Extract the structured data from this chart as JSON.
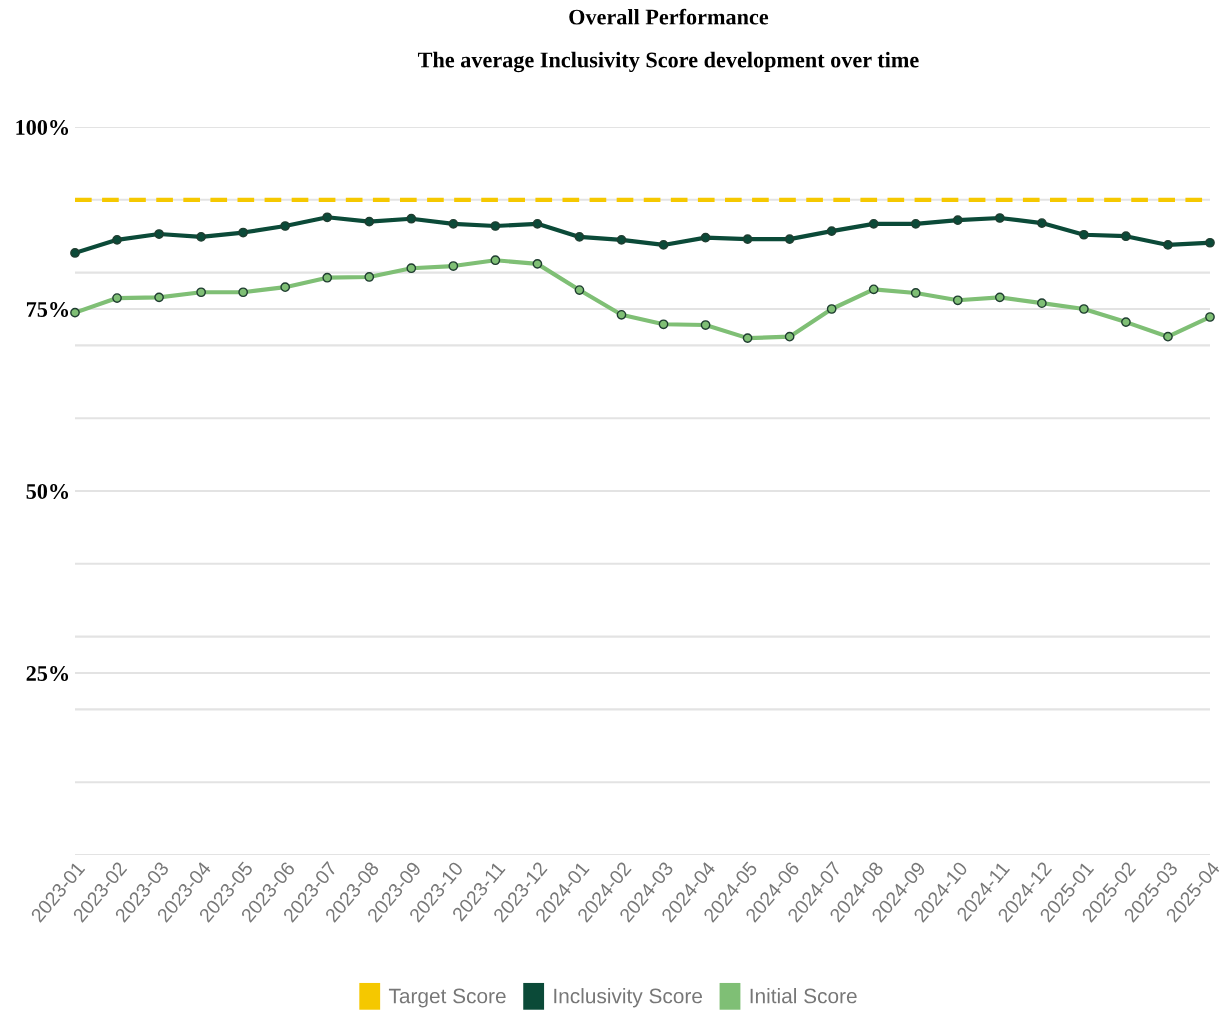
{
  "chart_data": {
    "type": "line",
    "title": "Overall Performance",
    "subtitle": "The average Inclusivity Score development over time",
    "categories": [
      "2023-01",
      "2023-02",
      "2023-03",
      "2023-04",
      "2023-05",
      "2023-06",
      "2023-07",
      "2023-08",
      "2023-09",
      "2023-10",
      "2023-11",
      "2023-12",
      "2024-01",
      "2024-02",
      "2024-03",
      "2024-04",
      "2024-05",
      "2024-06",
      "2024-07",
      "2024-08",
      "2024-09",
      "2024-10",
      "2024-11",
      "2024-12",
      "2025-01",
      "2025-02",
      "2025-03",
      "2025-04"
    ],
    "series": [
      {
        "name": "Target Score",
        "color": "#f5c800",
        "line_style": "dashed",
        "marker": "none",
        "values": [
          90,
          90,
          90,
          90,
          90,
          90,
          90,
          90,
          90,
          90,
          90,
          90,
          90,
          90,
          90,
          90,
          90,
          90,
          90,
          90,
          90,
          90,
          90,
          90,
          90,
          90,
          90,
          90
        ]
      },
      {
        "name": "Inclusivity Score",
        "color": "#0b4a38",
        "line_style": "solid",
        "marker": "circle",
        "values": [
          82.7,
          84.5,
          85.3,
          84.9,
          85.5,
          86.4,
          87.6,
          87.0,
          87.4,
          86.7,
          86.4,
          86.7,
          84.9,
          84.5,
          83.8,
          84.8,
          84.6,
          84.6,
          85.7,
          86.7,
          86.7,
          87.2,
          87.5,
          86.8,
          85.2,
          85.0,
          83.8,
          84.1
        ]
      },
      {
        "name": "Initial Score",
        "color": "#7fbf75",
        "line_style": "solid",
        "marker": "circle",
        "values": [
          74.5,
          76.5,
          76.6,
          77.3,
          77.3,
          78.0,
          79.3,
          79.4,
          80.6,
          80.9,
          81.7,
          81.2,
          77.6,
          74.2,
          72.9,
          72.8,
          71.0,
          71.2,
          75.0,
          77.7,
          77.2,
          76.2,
          76.6,
          75.8,
          75.0,
          73.2,
          71.2,
          73.9
        ]
      }
    ],
    "ylim": [
      0,
      100
    ],
    "yticks": [
      {
        "value": 0,
        "label": null
      },
      {
        "value": 10,
        "label": null
      },
      {
        "value": 20,
        "label": null
      },
      {
        "value": 25,
        "label": "25%"
      },
      {
        "value": 30,
        "label": null
      },
      {
        "value": 40,
        "label": null
      },
      {
        "value": 50,
        "label": "50%"
      },
      {
        "value": 60,
        "label": null
      },
      {
        "value": 70,
        "label": null
      },
      {
        "value": 75,
        "label": "75%"
      },
      {
        "value": 80,
        "label": null
      },
      {
        "value": 90,
        "label": null
      },
      {
        "value": 100,
        "label": "100%"
      }
    ],
    "grid": "y",
    "legend": "bottom"
  }
}
